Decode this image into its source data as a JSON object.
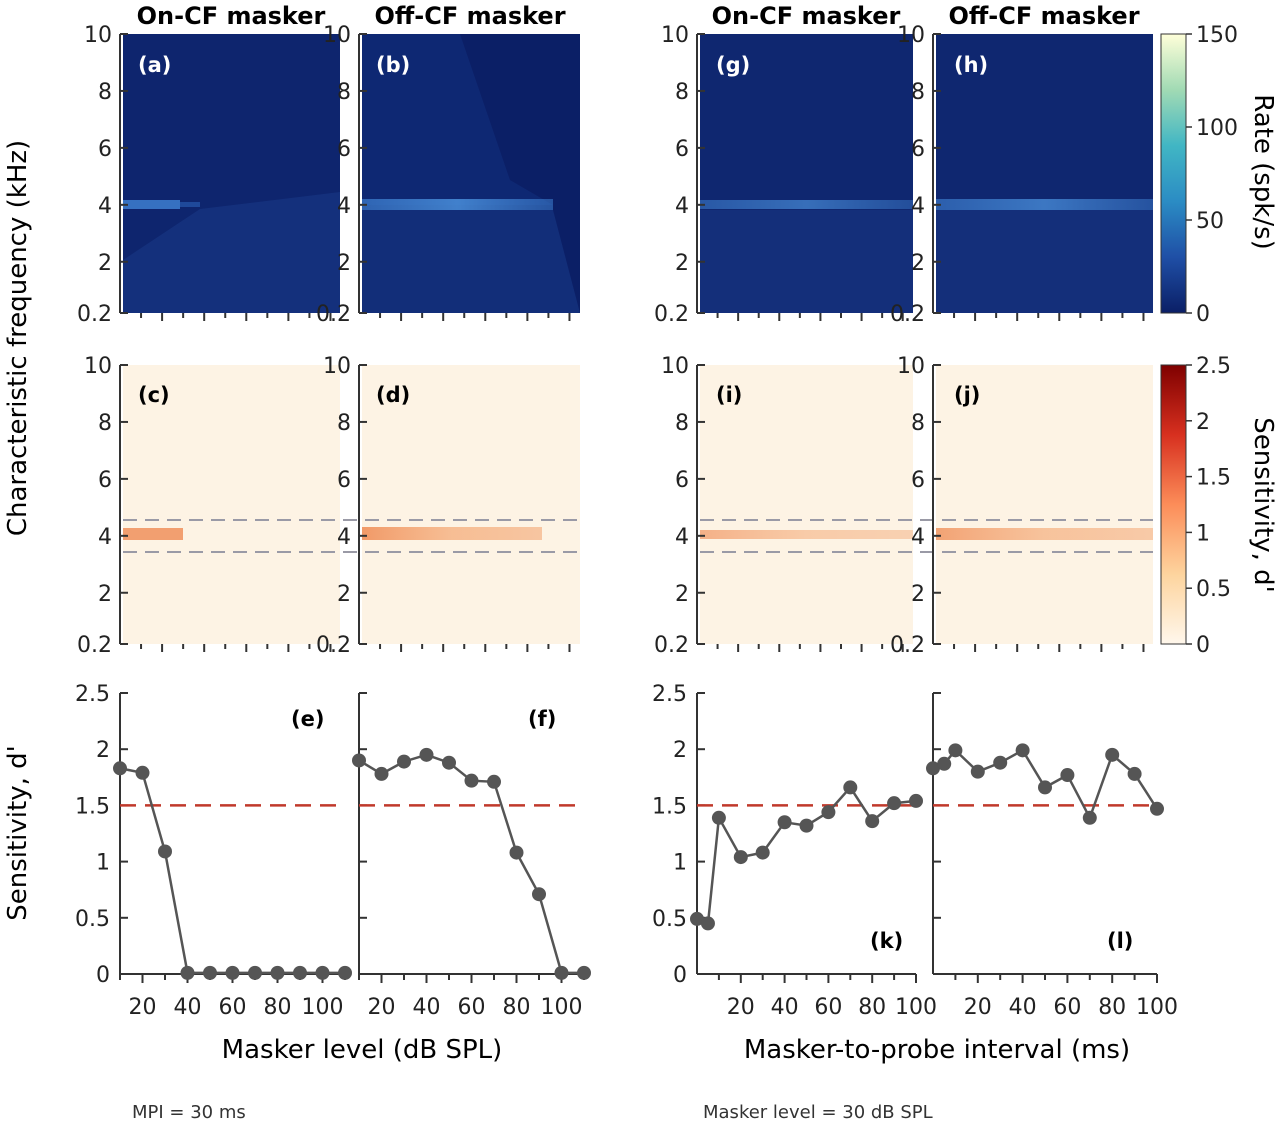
{
  "colors": {
    "rate_bg": "#0b1f66",
    "rate_band": "#3d7fd0",
    "sens_bg": "#fdf3e4",
    "sens_band": "#f2a06a",
    "line": "#555555",
    "threshold": "#c0392b",
    "cf_band_lines": "#9a9aa6"
  },
  "column_titles": [
    "On-CF masker",
    "Off-CF masker",
    "On-CF masker",
    "Off-CF masker"
  ],
  "axis_labels": {
    "heatmap_y": "Characteristic frequency (kHz)",
    "sens_y": "Sensitivity, d'",
    "x_left": "Masker level (dB SPL)",
    "x_right": "Masker-to-probe interval (ms)",
    "rate_colorbar": "Rate (spk/s)",
    "sens_colorbar": "Sensitivity, d'"
  },
  "notes": {
    "left": "MPI = 30 ms",
    "right": "Masker level = 30 dB SPL"
  },
  "heatmap_y_ticks": [
    "0.2",
    "2",
    "4",
    "6",
    "8",
    "10"
  ],
  "sens_y_ticks": [
    "0",
    "0.5",
    "1",
    "1.5",
    "2",
    "2.5"
  ],
  "left_x_ticks": [
    "20",
    "40",
    "60",
    "80",
    "100"
  ],
  "right_x_ticks": [
    "20",
    "40",
    "60",
    "80",
    "100"
  ],
  "rate_colorbar_ticks": [
    "0",
    "50",
    "100",
    "150"
  ],
  "sens_colorbar_ticks": [
    "0",
    "0.5",
    "1",
    "1.5",
    "2",
    "2.5"
  ],
  "panel_labels": {
    "rate": [
      "(a)",
      "(b)",
      "(g)",
      "(h)"
    ],
    "sens": [
      "(c)",
      "(d)",
      "(i)",
      "(j)"
    ],
    "line": [
      "(e)",
      "(f)",
      "(k)",
      "(l)"
    ]
  },
  "chart_data": [
    {
      "type": "heatmap",
      "panels": [
        "(a)",
        "(b)",
        "(g)",
        "(h)"
      ],
      "ylabel": "Characteristic frequency (kHz)",
      "ylim": [
        0.2,
        10
      ],
      "colorbar": {
        "label": "Rate (spk/s)",
        "range": [
          0,
          150
        ],
        "ticks": [
          0,
          50,
          100,
          150
        ]
      },
      "band_center_khz": 4
    },
    {
      "type": "heatmap",
      "panels": [
        "(c)",
        "(d)",
        "(i)",
        "(j)"
      ],
      "ylabel": "Characteristic frequency (kHz)",
      "ylim": [
        0.2,
        10
      ],
      "colorbar": {
        "label": "Sensitivity, d'",
        "range": [
          0,
          2.5
        ],
        "ticks": [
          0,
          0.5,
          1,
          1.5,
          2,
          2.5
        ]
      },
      "band_center_khz": 4,
      "band_edges_khz": [
        3.35,
        4.5
      ]
    },
    {
      "type": "line",
      "panel": "(e)",
      "xlabel": "Masker level (dB SPL)",
      "ylabel": "Sensitivity, d'",
      "xlim": [
        10,
        110
      ],
      "ylim": [
        0,
        2.5
      ],
      "threshold": 1.5,
      "x": [
        10,
        20,
        30,
        40,
        50,
        60,
        70,
        80,
        90,
        100,
        110
      ],
      "y": [
        1.83,
        1.79,
        1.09,
        0.01,
        0.01,
        0.01,
        0.01,
        0.01,
        0.01,
        0.01,
        0.01
      ]
    },
    {
      "type": "line",
      "panel": "(f)",
      "xlabel": "Masker level (dB SPL)",
      "xlim": [
        10,
        110
      ],
      "ylim": [
        0,
        2.5
      ],
      "threshold": 1.5,
      "x": [
        10,
        20,
        30,
        40,
        50,
        60,
        70,
        80,
        90,
        100,
        110
      ],
      "y": [
        1.9,
        1.78,
        1.89,
        1.95,
        1.88,
        1.72,
        1.71,
        1.08,
        0.71,
        0.01,
        0.01
      ]
    },
    {
      "type": "line",
      "panel": "(k)",
      "xlabel": "Masker-to-probe interval (ms)",
      "ylabel": "Sensitivity, d'",
      "xlim": [
        0,
        100
      ],
      "ylim": [
        0,
        2.5
      ],
      "threshold": 1.5,
      "x": [
        0,
        5,
        10,
        20,
        30,
        40,
        50,
        60,
        70,
        80,
        90,
        100
      ],
      "y": [
        0.49,
        0.45,
        1.39,
        1.04,
        1.08,
        1.35,
        1.32,
        1.44,
        1.66,
        1.36,
        1.52,
        1.54
      ]
    },
    {
      "type": "line",
      "panel": "(l)",
      "xlabel": "Masker-to-probe interval (ms)",
      "xlim": [
        0,
        100
      ],
      "ylim": [
        0,
        2.5
      ],
      "threshold": 1.5,
      "x": [
        0,
        5,
        10,
        20,
        30,
        40,
        50,
        60,
        70,
        80,
        90,
        100
      ],
      "y": [
        1.83,
        1.87,
        1.99,
        1.8,
        1.88,
        1.99,
        1.66,
        1.77,
        1.39,
        1.95,
        1.78,
        1.47
      ]
    }
  ]
}
